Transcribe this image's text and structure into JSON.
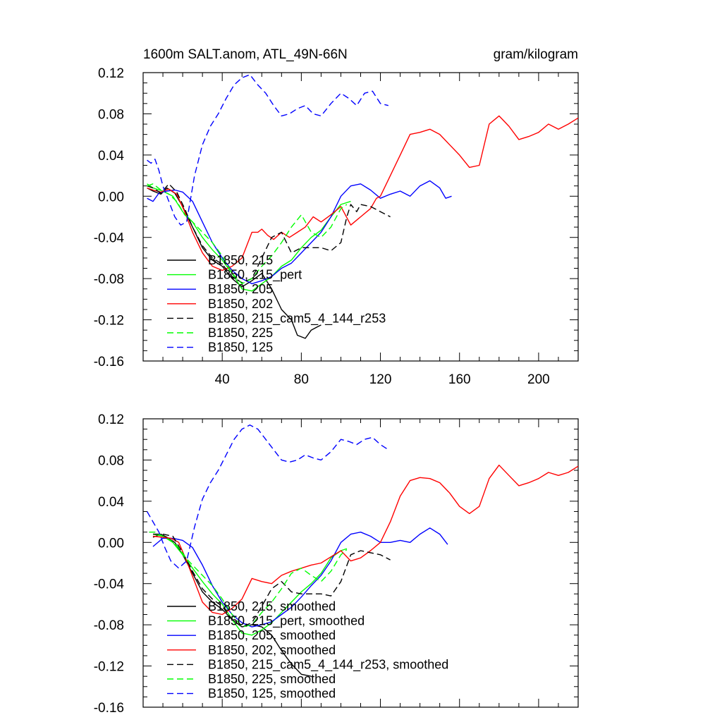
{
  "figure": {
    "title_left": "1600m SALT.anom, ATL_49N-66N",
    "title_right": "gram/kilogram"
  },
  "chart_data": [
    {
      "type": "line",
      "title": "1600m SALT.anom, ATL_49N-66N",
      "units": "gram/kilogram",
      "xlim": [
        0,
        220
      ],
      "ylim": [
        -0.16,
        0.12
      ],
      "xticks": [
        40,
        80,
        120,
        160,
        200
      ],
      "xtick_labels": [
        "40",
        "80",
        "120",
        "160",
        "200"
      ],
      "yticks": [
        -0.16,
        -0.12,
        -0.08,
        -0.04,
        0.0,
        0.04,
        0.08,
        0.12
      ],
      "ytick_labels": [
        "-0.16",
        "-0.12",
        "-0.08",
        "-0.04",
        "0.00",
        "0.04",
        "0.08",
        "0.12"
      ],
      "grid": false,
      "legend_position": "bottom-left",
      "series": [
        {
          "name": "B1850, 215",
          "color": "#000000",
          "dash": "solid",
          "x": [
            2,
            5,
            9,
            12,
            16,
            20,
            25,
            30,
            35,
            40,
            45,
            50,
            55,
            60,
            65,
            70,
            75,
            78,
            82,
            85,
            88,
            90
          ],
          "y": [
            0.008,
            0.005,
            0.002,
            0.008,
            0.003,
            -0.01,
            -0.03,
            -0.05,
            -0.062,
            -0.068,
            -0.08,
            -0.088,
            -0.082,
            -0.075,
            -0.09,
            -0.11,
            -0.12,
            -0.135,
            -0.138,
            -0.13,
            -0.127,
            -0.125
          ]
        },
        {
          "name": "B1850, 215_pert",
          "color": "#00ff00",
          "dash": "solid",
          "x": [
            2,
            5,
            10,
            15,
            20,
            25,
            30,
            35,
            40,
            45,
            50,
            55,
            60,
            65,
            70,
            75,
            80,
            85,
            90,
            95,
            100,
            105
          ],
          "y": [
            0.012,
            0.008,
            0.005,
            0.0,
            -0.015,
            -0.025,
            -0.04,
            -0.052,
            -0.062,
            -0.075,
            -0.09,
            -0.092,
            -0.085,
            -0.078,
            -0.068,
            -0.062,
            -0.05,
            -0.04,
            -0.033,
            -0.02,
            -0.008,
            -0.005
          ]
        },
        {
          "name": "B1850, 205",
          "color": "#0000ff",
          "dash": "solid",
          "x": [
            2,
            5,
            8,
            12,
            16,
            20,
            25,
            30,
            35,
            40,
            45,
            50,
            55,
            60,
            65,
            70,
            75,
            80,
            85,
            90,
            95,
            100,
            105,
            110,
            115,
            120,
            125,
            130,
            135,
            140,
            145,
            150,
            153,
            156
          ],
          "y": [
            -0.002,
            -0.005,
            0.003,
            0.005,
            0.006,
            0.004,
            -0.005,
            -0.025,
            -0.045,
            -0.06,
            -0.072,
            -0.08,
            -0.085,
            -0.082,
            -0.078,
            -0.07,
            -0.065,
            -0.055,
            -0.045,
            -0.035,
            -0.02,
            0.0,
            0.01,
            0.012,
            0.006,
            -0.002,
            0.002,
            0.005,
            0.0,
            0.01,
            0.015,
            0.008,
            -0.002,
            0.0
          ]
        },
        {
          "name": "B1850, 202",
          "color": "#ff0000",
          "dash": "solid",
          "x": [
            2,
            5,
            9,
            13,
            17,
            21,
            25,
            30,
            35,
            40,
            45,
            50,
            55,
            58,
            60,
            63,
            66,
            70,
            74,
            78,
            82,
            86,
            90,
            95,
            100,
            105,
            110,
            115,
            118,
            120,
            125,
            130,
            135,
            140,
            145,
            150,
            155,
            160,
            165,
            170,
            175,
            180,
            185,
            190,
            195,
            200,
            205,
            210,
            215,
            220
          ],
          "y": [
            0.008,
            0.006,
            0.004,
            0.007,
            0.002,
            -0.015,
            -0.035,
            -0.055,
            -0.068,
            -0.072,
            -0.068,
            -0.06,
            -0.035,
            -0.035,
            -0.032,
            -0.038,
            -0.042,
            -0.035,
            -0.04,
            -0.035,
            -0.03,
            -0.02,
            -0.025,
            -0.018,
            -0.01,
            -0.028,
            -0.02,
            -0.012,
            -0.002,
            0.0,
            0.02,
            0.04,
            0.06,
            0.062,
            0.065,
            0.06,
            0.05,
            0.04,
            0.028,
            0.03,
            0.07,
            0.078,
            0.068,
            0.055,
            0.058,
            0.062,
            0.07,
            0.065,
            0.07,
            0.076
          ]
        },
        {
          "name": "B1850, 215_cam5_4_144_r253",
          "color": "#000000",
          "dash": "dashed",
          "x": [
            2,
            5,
            9,
            13,
            17,
            21,
            25,
            30,
            35,
            40,
            45,
            50,
            55,
            60,
            65,
            70,
            75,
            80,
            85,
            90,
            95,
            100,
            103,
            105,
            108,
            110,
            115,
            120,
            125
          ],
          "y": [
            0.01,
            0.008,
            0.003,
            0.012,
            0.004,
            -0.012,
            -0.03,
            -0.048,
            -0.06,
            -0.066,
            -0.078,
            -0.084,
            -0.08,
            -0.06,
            -0.04,
            -0.035,
            -0.055,
            -0.05,
            -0.05,
            -0.05,
            -0.053,
            -0.045,
            -0.02,
            -0.008,
            -0.015,
            -0.008,
            -0.01,
            -0.015,
            -0.02
          ]
        },
        {
          "name": "B1850, 225",
          "color": "#00ff00",
          "dash": "dashed",
          "x": [
            2,
            5,
            9,
            13,
            17,
            21,
            25,
            30,
            35,
            40,
            45,
            50,
            55,
            60,
            65,
            70,
            75,
            80,
            85,
            90,
            95,
            100,
            103
          ],
          "y": [
            0.01,
            0.012,
            0.006,
            0.002,
            -0.005,
            -0.018,
            -0.025,
            -0.035,
            -0.045,
            -0.058,
            -0.075,
            -0.085,
            -0.08,
            -0.068,
            -0.058,
            -0.045,
            -0.03,
            -0.018,
            -0.035,
            -0.04,
            -0.03,
            -0.012,
            -0.008
          ]
        },
        {
          "name": "B1850, 125",
          "color": "#0000ff",
          "dash": "dashed",
          "x": [
            2,
            4,
            6,
            8,
            10,
            13,
            16,
            19,
            22,
            26,
            30,
            34,
            38,
            42,
            46,
            50,
            54,
            58,
            62,
            66,
            70,
            74,
            78,
            82,
            86,
            90,
            95,
            100,
            104,
            108,
            112,
            116,
            120,
            124
          ],
          "y": [
            0.035,
            0.032,
            0.036,
            0.025,
            0.01,
            -0.005,
            -0.02,
            -0.028,
            -0.025,
            0.02,
            0.05,
            0.068,
            0.08,
            0.095,
            0.108,
            0.115,
            0.118,
            0.108,
            0.1,
            0.088,
            0.078,
            0.08,
            0.085,
            0.088,
            0.08,
            0.078,
            0.09,
            0.1,
            0.095,
            0.088,
            0.1,
            0.102,
            0.09,
            0.088
          ]
        }
      ]
    },
    {
      "type": "line",
      "xlim": [
        0,
        220
      ],
      "ylim": [
        -0.16,
        0.12
      ],
      "xticks": [
        40,
        80,
        120,
        160,
        200
      ],
      "xtick_labels": [],
      "yticks": [
        -0.16,
        -0.12,
        -0.08,
        -0.04,
        0.0,
        0.04,
        0.08,
        0.12
      ],
      "ytick_labels": [
        "-0.16",
        "-0.12",
        "-0.08",
        "-0.04",
        "0.00",
        "0.04",
        "0.08",
        "0.12"
      ],
      "grid": false,
      "legend_position": "bottom-left",
      "series": [
        {
          "name": "B1850, 215, smoothed",
          "color": "#000000",
          "dash": "solid",
          "x": [
            5,
            9,
            12,
            16,
            20,
            25,
            30,
            35,
            40,
            45,
            50,
            55,
            60,
            65,
            70,
            75,
            80,
            85
          ],
          "y": [
            0.005,
            0.008,
            0.005,
            0.0,
            -0.012,
            -0.03,
            -0.048,
            -0.058,
            -0.065,
            -0.075,
            -0.082,
            -0.08,
            -0.082,
            -0.09,
            -0.105,
            -0.118,
            -0.128,
            -0.13
          ]
        },
        {
          "name": "B1850, 215_pert, smoothed",
          "color": "#00ff00",
          "dash": "solid",
          "x": [
            5,
            10,
            15,
            20,
            25,
            30,
            35,
            40,
            45,
            50,
            55,
            60,
            65,
            70,
            75,
            80,
            85,
            90,
            95,
            100,
            103
          ],
          "y": [
            0.008,
            0.006,
            0.0,
            -0.012,
            -0.025,
            -0.038,
            -0.05,
            -0.06,
            -0.075,
            -0.088,
            -0.09,
            -0.085,
            -0.078,
            -0.068,
            -0.058,
            -0.048,
            -0.04,
            -0.03,
            -0.015,
            -0.008,
            -0.006
          ]
        },
        {
          "name": "B1850, 205, smoothed",
          "color": "#0000ff",
          "dash": "solid",
          "x": [
            5,
            10,
            15,
            20,
            25,
            30,
            35,
            40,
            45,
            50,
            55,
            60,
            65,
            70,
            75,
            80,
            85,
            90,
            95,
            100,
            105,
            110,
            115,
            120,
            125,
            130,
            135,
            140,
            145,
            150,
            154
          ],
          "y": [
            -0.004,
            0.004,
            0.004,
            0.002,
            -0.005,
            -0.022,
            -0.042,
            -0.058,
            -0.07,
            -0.078,
            -0.082,
            -0.08,
            -0.077,
            -0.07,
            -0.063,
            -0.053,
            -0.042,
            -0.032,
            -0.018,
            0.0,
            0.008,
            0.01,
            0.006,
            0.0,
            0.0,
            0.002,
            0.0,
            0.008,
            0.014,
            0.008,
            -0.002
          ]
        },
        {
          "name": "B1850, 202, smoothed",
          "color": "#ff0000",
          "dash": "solid",
          "x": [
            5,
            10,
            14,
            18,
            22,
            26,
            30,
            35,
            40,
            45,
            50,
            55,
            60,
            65,
            70,
            75,
            80,
            85,
            90,
            95,
            100,
            105,
            110,
            115,
            120,
            125,
            130,
            135,
            140,
            145,
            150,
            155,
            160,
            165,
            170,
            175,
            180,
            185,
            190,
            195,
            200,
            205,
            210,
            215,
            220
          ],
          "y": [
            0.006,
            0.005,
            0.004,
            0.0,
            -0.018,
            -0.038,
            -0.058,
            -0.068,
            -0.07,
            -0.064,
            -0.055,
            -0.035,
            -0.038,
            -0.04,
            -0.032,
            -0.028,
            -0.025,
            -0.022,
            -0.02,
            -0.014,
            -0.008,
            -0.018,
            -0.015,
            -0.008,
            0.0,
            0.02,
            0.045,
            0.06,
            0.063,
            0.062,
            0.058,
            0.048,
            0.035,
            0.028,
            0.035,
            0.062,
            0.075,
            0.065,
            0.055,
            0.058,
            0.062,
            0.068,
            0.065,
            0.068,
            0.074
          ]
        },
        {
          "name": "B1850, 215_cam5_4_144_r253, smoothed",
          "color": "#000000",
          "dash": "dashed",
          "x": [
            5,
            10,
            15,
            20,
            25,
            30,
            35,
            40,
            45,
            50,
            55,
            60,
            65,
            70,
            75,
            80,
            85,
            90,
            95,
            100,
            105,
            110,
            115,
            120,
            125
          ],
          "y": [
            0.008,
            0.008,
            0.006,
            -0.01,
            -0.028,
            -0.045,
            -0.055,
            -0.062,
            -0.075,
            -0.082,
            -0.078,
            -0.062,
            -0.045,
            -0.038,
            -0.048,
            -0.05,
            -0.05,
            -0.05,
            -0.052,
            -0.038,
            -0.012,
            -0.008,
            -0.01,
            -0.012,
            -0.017
          ]
        },
        {
          "name": "B1850, 225, smoothed",
          "color": "#00ff00",
          "dash": "dashed",
          "x": [
            3,
            6,
            10,
            14,
            18,
            22,
            26,
            30,
            35,
            40,
            45,
            50,
            55,
            60,
            65,
            70,
            75,
            80,
            85,
            90,
            95,
            100,
            103
          ],
          "y": [
            0.01,
            0.01,
            0.006,
            0.002,
            -0.005,
            -0.016,
            -0.024,
            -0.032,
            -0.042,
            -0.055,
            -0.07,
            -0.082,
            -0.08,
            -0.068,
            -0.058,
            -0.045,
            -0.03,
            -0.025,
            -0.032,
            -0.038,
            -0.028,
            -0.012,
            -0.007
          ]
        },
        {
          "name": "B1850, 125, smoothed",
          "color": "#0000ff",
          "dash": "dashed",
          "x": [
            2,
            5,
            8,
            11,
            14,
            18,
            22,
            26,
            30,
            34,
            38,
            42,
            46,
            50,
            54,
            58,
            62,
            66,
            70,
            74,
            78,
            82,
            86,
            90,
            95,
            100,
            104,
            108,
            112,
            116,
            120,
            124
          ],
          "y": [
            0.03,
            0.02,
            0.01,
            -0.005,
            -0.018,
            -0.025,
            -0.018,
            0.015,
            0.042,
            0.058,
            0.07,
            0.085,
            0.1,
            0.11,
            0.114,
            0.11,
            0.1,
            0.09,
            0.08,
            0.078,
            0.08,
            0.085,
            0.082,
            0.08,
            0.088,
            0.1,
            0.098,
            0.095,
            0.1,
            0.102,
            0.095,
            0.09
          ]
        }
      ]
    }
  ]
}
